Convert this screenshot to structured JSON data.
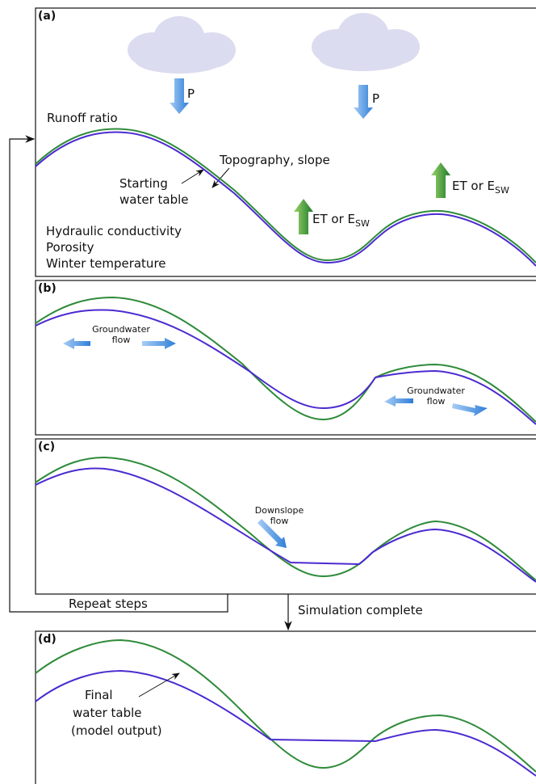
{
  "panels": [
    {
      "label": "(a)",
      "precip": [
        "P",
        "P"
      ],
      "runoff": "Runoff ratio",
      "topography": "Topography, slope",
      "starting_table": [
        "Starting",
        "water table"
      ],
      "et": [
        {
          "text": "ET or E",
          "sub": "SW"
        },
        {
          "text": "ET or E",
          "sub": "SW"
        }
      ],
      "properties": [
        "Hydraulic conductivity",
        "Porosity",
        "Winter temperature"
      ]
    },
    {
      "label": "(b)",
      "flow": [
        [
          "Groundwater",
          "flow"
        ],
        [
          "Groundwater",
          "flow"
        ]
      ]
    },
    {
      "label": "(c)",
      "flow": [
        "Downslope",
        "flow"
      ]
    },
    {
      "label": "(d)",
      "final": [
        "Final",
        "water table",
        "(model output)"
      ]
    }
  ],
  "repeat": "Repeat steps",
  "complete": "Simulation complete"
}
